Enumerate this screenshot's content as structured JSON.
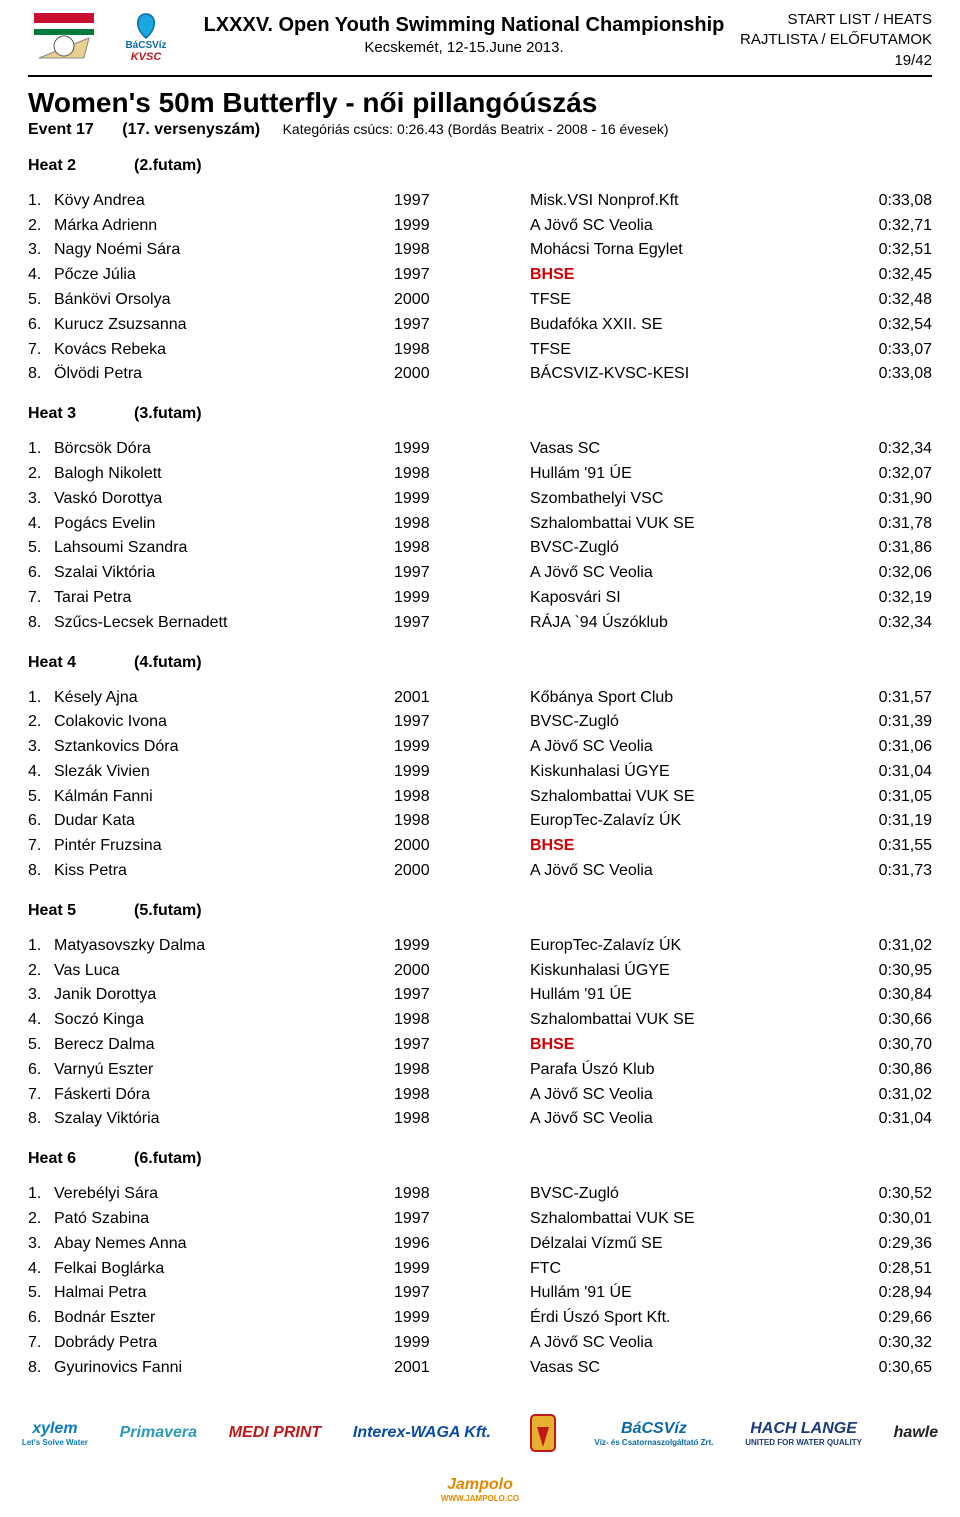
{
  "header": {
    "title_line1": "LXXXV. Open Youth Swimming National Championship",
    "title_line2": "Kecskemét, 12-15.June 2013.",
    "right_line1": "START LIST / HEATS",
    "right_line2": "RAJTLISTA / ELŐFUTAMOK",
    "page_num": "19/42",
    "logo_bacs_top": "BáCSVíz",
    "logo_bacs_bottom": "KVSC"
  },
  "event": {
    "title": "Women's 50m Butterfly - női pillangóúszás",
    "label": "Event 17",
    "num": "(17. versenyszám)",
    "record": "Kategóriás csúcs: 0:26.43 (Bordás Beatrix - 2008 - 16 évesek)"
  },
  "highlight_club": "BHSE",
  "highlight_color": "#d10000",
  "heats": [
    {
      "title": "Heat 2",
      "sub": "(2.futam)",
      "rows": [
        {
          "lane": "1.",
          "name": "Kövy Andrea",
          "year": "1997",
          "club": "Misk.VSI Nonprof.Kft",
          "time": "0:33,08"
        },
        {
          "lane": "2.",
          "name": "Márka Adrienn",
          "year": "1999",
          "club": "A Jövő SC Veolia",
          "time": "0:32,71"
        },
        {
          "lane": "3.",
          "name": "Nagy Noémi Sára",
          "year": "1998",
          "club": "Mohácsi Torna Egylet",
          "time": "0:32,51"
        },
        {
          "lane": "4.",
          "name": "Pőcze Júlia",
          "year": "1997",
          "club": "BHSE",
          "time": "0:32,45"
        },
        {
          "lane": "5.",
          "name": "Bánkövi Orsolya",
          "year": "2000",
          "club": "TFSE",
          "time": "0:32,48"
        },
        {
          "lane": "6.",
          "name": "Kurucz Zsuzsanna",
          "year": "1997",
          "club": "Budafóka XXII. SE",
          "time": "0:32,54"
        },
        {
          "lane": "7.",
          "name": "Kovács Rebeka",
          "year": "1998",
          "club": "TFSE",
          "time": "0:33,07"
        },
        {
          "lane": "8.",
          "name": "Ölvödi Petra",
          "year": "2000",
          "club": "BÁCSVIZ-KVSC-KESI",
          "time": "0:33,08"
        }
      ]
    },
    {
      "title": "Heat 3",
      "sub": "(3.futam)",
      "rows": [
        {
          "lane": "1.",
          "name": "Börcsök Dóra",
          "year": "1999",
          "club": "Vasas SC",
          "time": "0:32,34"
        },
        {
          "lane": "2.",
          "name": "Balogh Nikolett",
          "year": "1998",
          "club": "Hullám '91 ÚE",
          "time": "0:32,07"
        },
        {
          "lane": "3.",
          "name": "Vaskó Dorottya",
          "year": "1999",
          "club": "Szombathelyi VSC",
          "time": "0:31,90"
        },
        {
          "lane": "4.",
          "name": "Pogács Evelin",
          "year": "1998",
          "club": "Szhalombattai VUK SE",
          "time": "0:31,78"
        },
        {
          "lane": "5.",
          "name": "Lahsoumi Szandra",
          "year": "1998",
          "club": "BVSC-Zugló",
          "time": "0:31,86"
        },
        {
          "lane": "6.",
          "name": "Szalai Viktória",
          "year": "1997",
          "club": "A Jövő SC Veolia",
          "time": "0:32,06"
        },
        {
          "lane": "7.",
          "name": "Tarai Petra",
          "year": "1999",
          "club": "Kaposvári SI",
          "time": "0:32,19"
        },
        {
          "lane": "8.",
          "name": "Szűcs-Lecsek Bernadett",
          "year": "1997",
          "club": "RÁJA `94 Úszóklub",
          "time": "0:32,34"
        }
      ]
    },
    {
      "title": "Heat 4",
      "sub": "(4.futam)",
      "rows": [
        {
          "lane": "1.",
          "name": "Késely Ajna",
          "year": "2001",
          "club": "Kőbánya Sport Club",
          "time": "0:31,57"
        },
        {
          "lane": "2.",
          "name": "Colakovic Ivona",
          "year": "1997",
          "club": "BVSC-Zugló",
          "time": "0:31,39"
        },
        {
          "lane": "3.",
          "name": "Sztankovics Dóra",
          "year": "1999",
          "club": "A Jövő SC Veolia",
          "time": "0:31,06"
        },
        {
          "lane": "4.",
          "name": "Slezák Vivien",
          "year": "1999",
          "club": "Kiskunhalasi ÚGYE",
          "time": "0:31,04"
        },
        {
          "lane": "5.",
          "name": "Kálmán Fanni",
          "year": "1998",
          "club": "Szhalombattai VUK SE",
          "time": "0:31,05"
        },
        {
          "lane": "6.",
          "name": "Dudar Kata",
          "year": "1998",
          "club": "EuropTec-Zalavíz ÚK",
          "time": "0:31,19"
        },
        {
          "lane": "7.",
          "name": "Pintér Fruzsina",
          "year": "2000",
          "club": "BHSE",
          "time": "0:31,55"
        },
        {
          "lane": "8.",
          "name": "Kiss Petra",
          "year": "2000",
          "club": "A Jövő SC Veolia",
          "time": "0:31,73"
        }
      ]
    },
    {
      "title": "Heat 5",
      "sub": "(5.futam)",
      "rows": [
        {
          "lane": "1.",
          "name": "Matyasovszky Dalma",
          "year": "1999",
          "club": "EuropTec-Zalavíz ÚK",
          "time": "0:31,02"
        },
        {
          "lane": "2.",
          "name": "Vas Luca",
          "year": "2000",
          "club": "Kiskunhalasi ÚGYE",
          "time": "0:30,95"
        },
        {
          "lane": "3.",
          "name": "Janik Dorottya",
          "year": "1997",
          "club": "Hullám '91 ÚE",
          "time": "0:30,84"
        },
        {
          "lane": "4.",
          "name": "Soczó Kinga",
          "year": "1998",
          "club": "Szhalombattai VUK SE",
          "time": "0:30,66"
        },
        {
          "lane": "5.",
          "name": "Berecz Dalma",
          "year": "1997",
          "club": "BHSE",
          "time": "0:30,70"
        },
        {
          "lane": "6.",
          "name": "Varnyú Eszter",
          "year": "1998",
          "club": "Parafa Úszó Klub",
          "time": "0:30,86"
        },
        {
          "lane": "7.",
          "name": "Fáskerti Dóra",
          "year": "1998",
          "club": "A Jövő SC Veolia",
          "time": "0:31,02"
        },
        {
          "lane": "8.",
          "name": "Szalay Viktória",
          "year": "1998",
          "club": "A Jövő SC Veolia",
          "time": "0:31,04"
        }
      ]
    },
    {
      "title": "Heat 6",
      "sub": "(6.futam)",
      "rows": [
        {
          "lane": "1.",
          "name": "Verebélyi Sára",
          "year": "1998",
          "club": "BVSC-Zugló",
          "time": "0:30,52"
        },
        {
          "lane": "2.",
          "name": "Pató Szabina",
          "year": "1997",
          "club": "Szhalombattai VUK SE",
          "time": "0:30,01"
        },
        {
          "lane": "3.",
          "name": "Abay Nemes Anna",
          "year": "1996",
          "club": "Délzalai Vízmű SE",
          "time": "0:29,36"
        },
        {
          "lane": "4.",
          "name": "Felkai Boglárka",
          "year": "1999",
          "club": "FTC",
          "time": "0:28,51"
        },
        {
          "lane": "5.",
          "name": "Halmai Petra",
          "year": "1997",
          "club": "Hullám '91 ÚE",
          "time": "0:28,94"
        },
        {
          "lane": "6.",
          "name": "Bodnár Eszter",
          "year": "1999",
          "club": "Érdi Úszó Sport Kft.",
          "time": "0:29,66"
        },
        {
          "lane": "7.",
          "name": "Dobrády Petra",
          "year": "1999",
          "club": "A Jövő SC Veolia",
          "time": "0:30,32"
        },
        {
          "lane": "8.",
          "name": "Gyurinovics Fanni",
          "year": "2001",
          "club": "Vasas SC",
          "time": "0:30,65"
        }
      ]
    }
  ],
  "sponsors": [
    {
      "label": "xylem",
      "sub": "Let's Solve Water",
      "color": "#0a7bc1"
    },
    {
      "label": "Primavera",
      "sub": "",
      "color": "#2a9bb8"
    },
    {
      "label": "MEDI PRINT",
      "sub": "",
      "color": "#c01818"
    },
    {
      "label": "Interex-WAGA Kft.",
      "sub": "",
      "color": "#0a4aa8"
    },
    {
      "label": "",
      "sub": "",
      "color": "#c01818"
    },
    {
      "label": "BáCSVíz",
      "sub": "Víz- és Csatornaszolgáltató Zrt.",
      "color": "#0a6aa8"
    },
    {
      "label": "HACH LANGE",
      "sub": "UNITED FOR WATER QUALITY",
      "color": "#1a3a7a"
    },
    {
      "label": "hawle",
      "sub": "",
      "color": "#222"
    },
    {
      "label": "Jampolo",
      "sub": "WWW.JAMPOLO.CO",
      "color": "#e08a00"
    }
  ]
}
